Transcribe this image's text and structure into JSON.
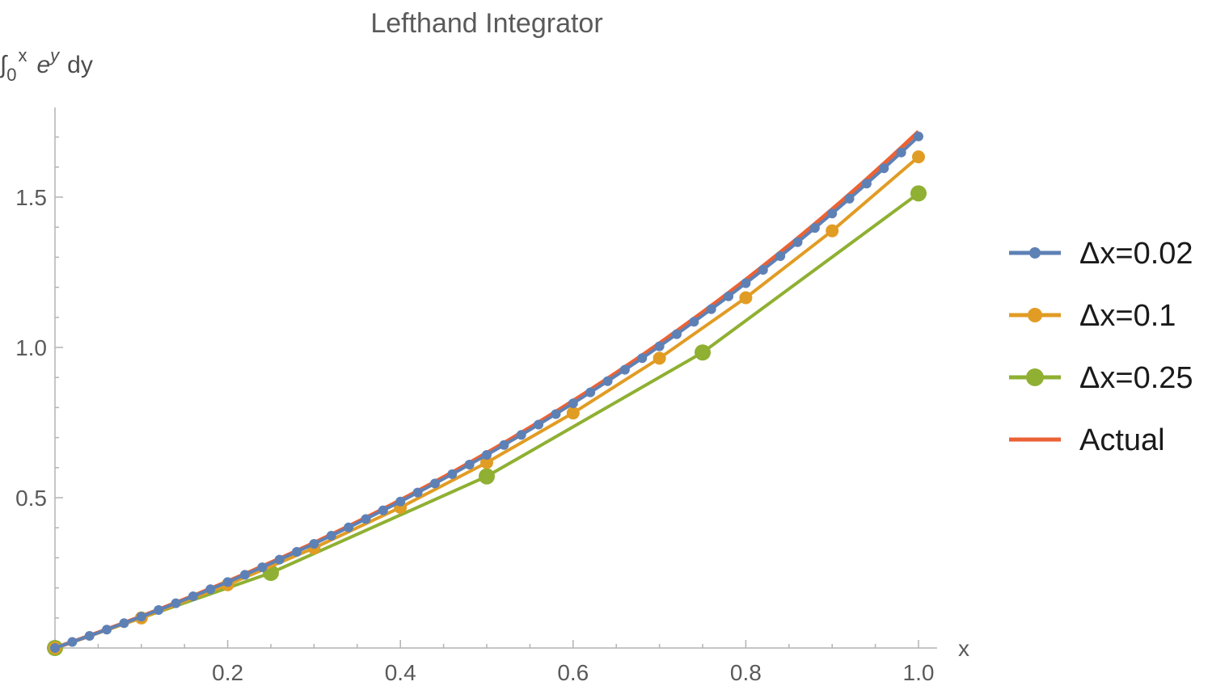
{
  "chart_data": {
    "type": "line",
    "title": "Lefthand Integrator",
    "ylabel": {
      "int": "∫",
      "lower": "0",
      "upper": "x",
      "base": "e",
      "exp": "y",
      "diff": "dy"
    },
    "xlabel": "x",
    "xlim": [
      0,
      1.02
    ],
    "ylim": [
      0,
      1.8
    ],
    "x_ticks": [
      {
        "value": 0.2,
        "label": "0.2"
      },
      {
        "value": 0.4,
        "label": "0.4"
      },
      {
        "value": 0.6,
        "label": "0.6"
      },
      {
        "value": 0.8,
        "label": "0.8"
      },
      {
        "value": 1.0,
        "label": "1.0"
      }
    ],
    "y_ticks": [
      {
        "value": 0.5,
        "label": "0.5"
      },
      {
        "value": 1.0,
        "label": "1.0"
      },
      {
        "value": 1.5,
        "label": "1.5"
      }
    ],
    "legend_position": "right",
    "grid": false,
    "series": [
      {
        "name": "Δx=0.02",
        "color": "#5e81b5",
        "marker_size": 6,
        "x": [
          0,
          0.02,
          0.04,
          0.06,
          0.08,
          0.1,
          0.12,
          0.14,
          0.16,
          0.18,
          0.2,
          0.22,
          0.24,
          0.26,
          0.28,
          0.3,
          0.32,
          0.34,
          0.36,
          0.38,
          0.4,
          0.42,
          0.44,
          0.46,
          0.48,
          0.5,
          0.52,
          0.54,
          0.56,
          0.58,
          0.6,
          0.62,
          0.64,
          0.66,
          0.68,
          0.7,
          0.72,
          0.74,
          0.76,
          0.78,
          0.8,
          0.82,
          0.84,
          0.86,
          0.88,
          0.9,
          0.92,
          0.94,
          0.96,
          0.98,
          1.0
        ],
        "y": [
          0,
          0.02,
          0.0404,
          0.0612,
          0.0825,
          0.1042,
          0.1263,
          0.1488,
          0.1719,
          0.1954,
          0.2193,
          0.2437,
          0.2686,
          0.2941,
          0.32,
          0.3465,
          0.3735,
          0.4011,
          0.4292,
          0.4579,
          0.4871,
          0.517,
          0.5474,
          0.5784,
          0.6101,
          0.6424,
          0.6754,
          0.709,
          0.7433,
          0.7783,
          0.814,
          0.8505,
          0.8877,
          0.9256,
          0.9643,
          1.0038,
          1.0441,
          1.0852,
          1.1272,
          1.17,
          1.2137,
          1.2582,
          1.3037,
          1.3501,
          1.3974,
          1.4456,
          1.4948,
          1.545,
          1.5962,
          1.6485,
          1.7018
        ]
      },
      {
        "name": "Δx=0.1",
        "color": "#e19c24",
        "marker_size": 8,
        "x": [
          0,
          0.1,
          0.2,
          0.3,
          0.4,
          0.5,
          0.6,
          0.7,
          0.8,
          0.9,
          1.0
        ],
        "y": [
          0,
          0.1,
          0.2105,
          0.3327,
          0.4677,
          0.6169,
          0.7818,
          0.964,
          1.1654,
          1.388,
          1.634
        ]
      },
      {
        "name": "Δx=0.25",
        "color": "#8fb032",
        "marker_size": 10,
        "x": [
          0,
          0.25,
          0.5,
          0.75,
          1.0
        ],
        "y": [
          0,
          0.25,
          0.571,
          0.9832,
          1.5125
        ]
      },
      {
        "name": "Actual",
        "color": "#eb6235",
        "marker_size": 0,
        "function": "e^x - 1",
        "x_range": [
          0,
          1.0
        ]
      }
    ]
  }
}
